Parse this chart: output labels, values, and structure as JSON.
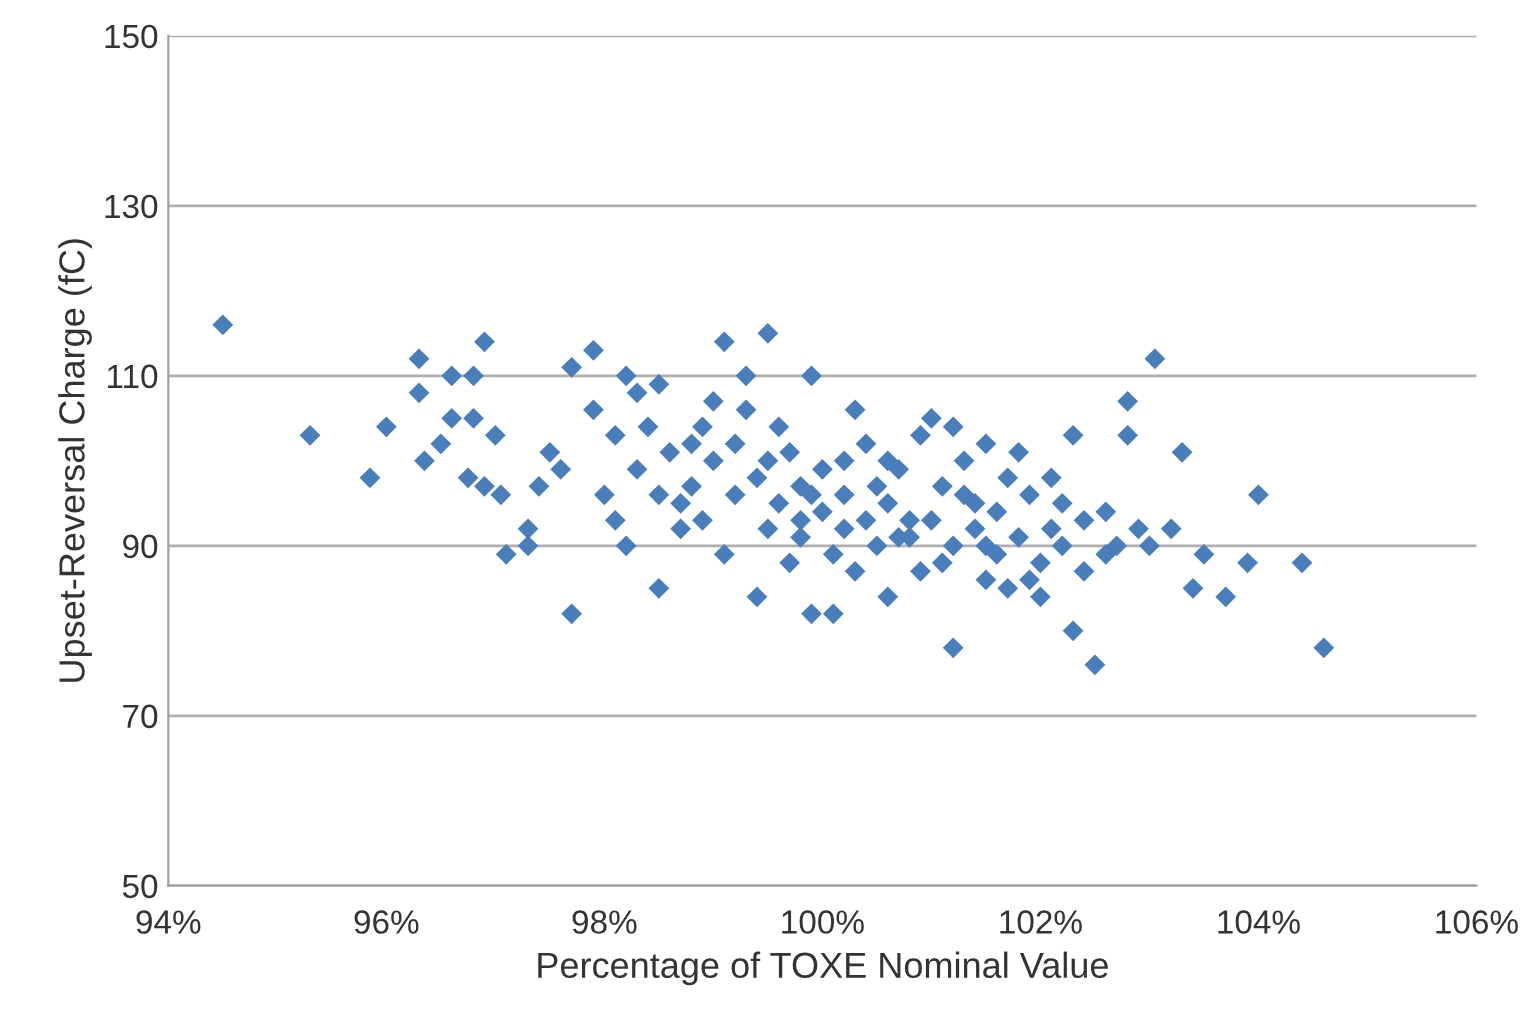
{
  "chart_data": {
    "type": "scatter",
    "xlabel": "Percentage of TOXE Nominal Value",
    "ylabel": "Upset-Reversal Charge (fC)",
    "marker": "diamond",
    "grid": "y",
    "xlim": [
      94,
      106
    ],
    "ylim": [
      50,
      150
    ],
    "xticks": [
      {
        "value": 94,
        "label": "94%"
      },
      {
        "value": 96,
        "label": "96%"
      },
      {
        "value": 98,
        "label": "98%"
      },
      {
        "value": 100,
        "label": "100%"
      },
      {
        "value": 102,
        "label": "102%"
      },
      {
        "value": 104,
        "label": "104%"
      },
      {
        "value": 106,
        "label": "106%"
      }
    ],
    "yticks": [
      50,
      70,
      90,
      110,
      130,
      150
    ],
    "series": [
      {
        "color": "#4a7ebb",
        "x": [
          94.5,
          95.3,
          95.85,
          96.0,
          96.3,
          96.3,
          96.35,
          96.5,
          96.6,
          96.6,
          96.75,
          96.8,
          96.8,
          96.9,
          96.9,
          97.0,
          97.05,
          97.1,
          97.3,
          97.3,
          97.4,
          97.5,
          97.6,
          97.7,
          97.7,
          97.9,
          97.9,
          98.0,
          98.1,
          98.2,
          98.2,
          98.3,
          98.5,
          98.5,
          98.7,
          98.9,
          99.1,
          99.1,
          99.3,
          99.5,
          99.4,
          99.7,
          99.9,
          99.9,
          100.1,
          100.2,
          100.3,
          100.5,
          100.8,
          101.0,
          101.2,
          101.2,
          101.4,
          101.5,
          101.7,
          101.8,
          102.0,
          102.1,
          102.3,
          102.4,
          102.5,
          102.6,
          102.7,
          102.8,
          102.8,
          102.9,
          103.05,
          103.0,
          103.2,
          103.3,
          103.4,
          103.5,
          103.7,
          103.9,
          104.0,
          104.4,
          104.6,
          102.3,
          100.6,
          101.9,
          98.3,
          98.6,
          98.8,
          99.0,
          99.2,
          99.4,
          99.6,
          99.8,
          100.0,
          100.2,
          100.4,
          100.6,
          100.8,
          101.0,
          101.2,
          101.4,
          101.6,
          101.8,
          102.0,
          102.2,
          98.4,
          98.7,
          98.9,
          99.2,
          99.5,
          99.7,
          100.0,
          100.1,
          100.4,
          100.7,
          100.9,
          101.1,
          101.3,
          101.6,
          101.9,
          102.1,
          102.4,
          99.3,
          99.6,
          99.8,
          100.3,
          100.9,
          101.5,
          98.1,
          98.5,
          99.0,
          99.8,
          100.5,
          101.1,
          101.7,
          102.2,
          102.6,
          99.5,
          100.2,
          100.7,
          101.3,
          98.8,
          99.9,
          100.6,
          101.5
        ],
        "values": [
          116,
          103,
          98,
          104,
          112,
          108,
          100,
          102,
          105,
          110,
          98,
          110,
          105,
          114,
          97,
          103,
          96,
          89,
          92,
          90,
          97,
          101,
          99,
          82,
          111,
          113,
          106,
          96,
          103,
          110,
          90,
          108,
          109,
          85,
          95,
          104,
          114,
          89,
          110,
          115,
          84,
          88,
          110,
          82,
          82,
          100,
          106,
          90,
          93,
          105,
          78,
          104,
          95,
          86,
          98,
          101,
          84,
          92,
          103,
          87,
          76,
          94,
          90,
          107,
          103,
          92,
          112,
          90,
          92,
          101,
          85,
          89,
          84,
          88,
          96,
          88,
          78,
          80,
          84,
          86,
          99,
          101,
          97,
          100,
          96,
          98,
          95,
          97,
          94,
          96,
          93,
          95,
          91,
          93,
          90,
          92,
          89,
          91,
          88,
          90,
          104,
          92,
          93,
          102,
          92,
          101,
          99,
          89,
          102,
          99,
          87,
          97,
          100,
          94,
          96,
          98,
          93,
          106,
          104,
          91,
          87,
          103,
          102,
          93,
          96,
          107,
          93,
          97,
          88,
          85,
          95,
          89,
          100,
          92,
          91,
          96,
          102,
          96,
          100,
          90
        ]
      }
    ]
  }
}
